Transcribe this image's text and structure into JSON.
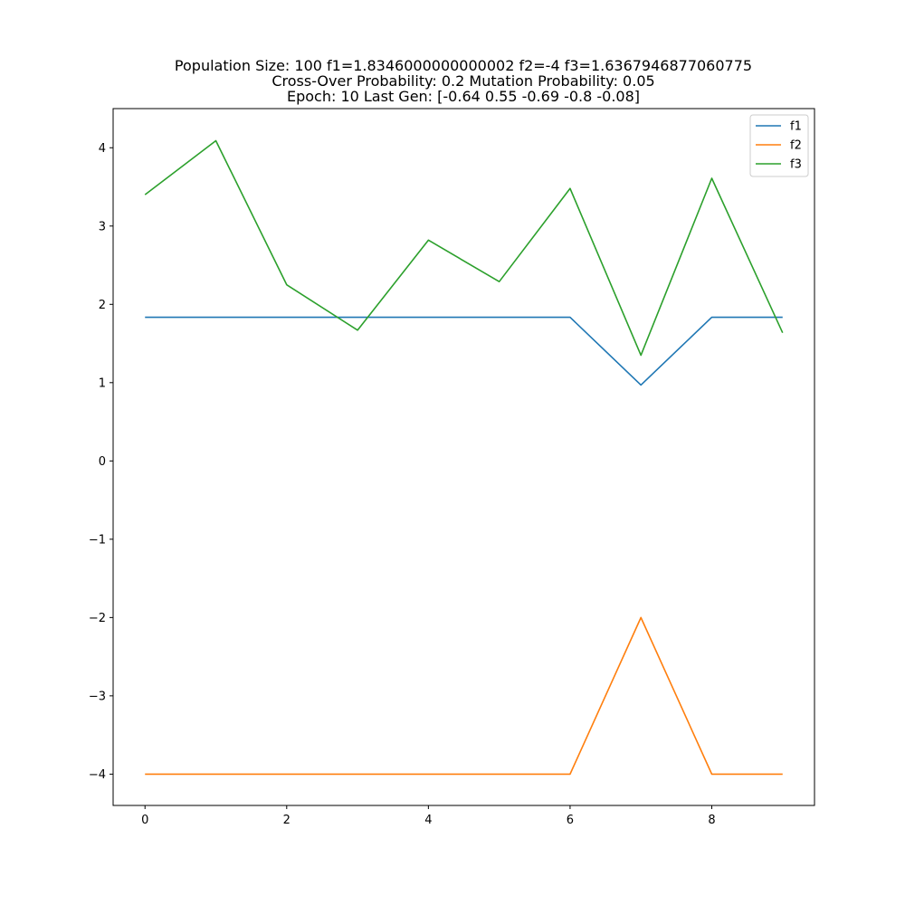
{
  "chart_data": {
    "type": "line",
    "title_lines": [
      "Population Size: 100 f1=1.8346000000000002 f2=-4 f3=1.6367946877060775",
      "Cross-Over Probability: 0.2 Mutation Probability: 0.05",
      "Epoch: 10 Last Gen: [-0.64  0.55 -0.69 -0.8  -0.08]"
    ],
    "xlabel": "",
    "ylabel": "",
    "x": [
      0,
      1,
      2,
      3,
      4,
      5,
      6,
      7,
      8,
      9
    ],
    "xlim": [
      -0.45,
      9.45
    ],
    "ylim": [
      -4.4,
      4.5
    ],
    "xticks": [
      0,
      2,
      4,
      6,
      8
    ],
    "yticks": [
      -4,
      -3,
      -2,
      -1,
      0,
      1,
      2,
      3,
      4
    ],
    "ytick_labels": [
      "−4",
      "−3",
      "−2",
      "−1",
      "0",
      "1",
      "2",
      "3",
      "4"
    ],
    "grid": false,
    "legend_position": "top-right",
    "series": [
      {
        "name": "f1",
        "color": "#1f77b4",
        "values": [
          1.8346,
          1.8346,
          1.8346,
          1.8346,
          1.8346,
          1.8346,
          1.8346,
          0.97,
          1.8346,
          1.8346
        ]
      },
      {
        "name": "f2",
        "color": "#ff7f0e",
        "values": [
          -4,
          -4,
          -4,
          -4,
          -4,
          -4,
          -4,
          -2,
          -4,
          -4
        ]
      },
      {
        "name": "f3",
        "color": "#2ca02c",
        "values": [
          3.4,
          4.09,
          2.25,
          1.67,
          2.82,
          2.29,
          3.48,
          1.35,
          3.61,
          1.6368
        ]
      }
    ]
  }
}
